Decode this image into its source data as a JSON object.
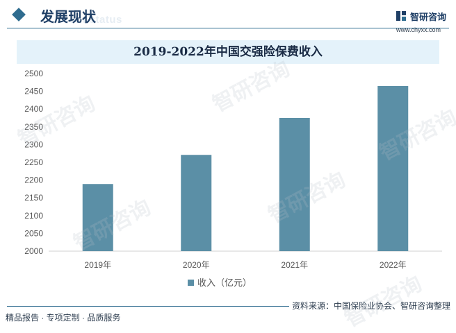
{
  "header": {
    "title": "发展现状",
    "subtitle": "ent status",
    "brand_name": "智研咨询",
    "brand_url": "www.chyxx.com"
  },
  "colors": {
    "bar": "#5b8fa6",
    "accent": "#2f6c8f",
    "title_bg": "#e4f2fa"
  },
  "chart_data": {
    "type": "bar",
    "title": "2019-2022年中国交强险保费收入",
    "categories": [
      "2019年",
      "2020年",
      "2021年",
      "2022年"
    ],
    "series": [
      {
        "name": "收入（亿元）",
        "values": [
          2189,
          2271,
          2375,
          2465
        ]
      }
    ],
    "ylim": [
      2000,
      2500
    ],
    "yticks": [
      "2000",
      "2050",
      "2100",
      "2150",
      "2200",
      "2250",
      "2300",
      "2350",
      "2400",
      "2450",
      "2500"
    ],
    "grid": false,
    "legend": "bottom"
  },
  "footer": {
    "left": "精品报告 · 专项定制 · 品质服务",
    "source": "资料来源：中国保险业协会、智研咨询整理"
  },
  "watermarks": [
    "智研咨询",
    "智研咨询",
    "智研咨询",
    "智研咨询",
    "智研咨询",
    "智研咨询"
  ]
}
